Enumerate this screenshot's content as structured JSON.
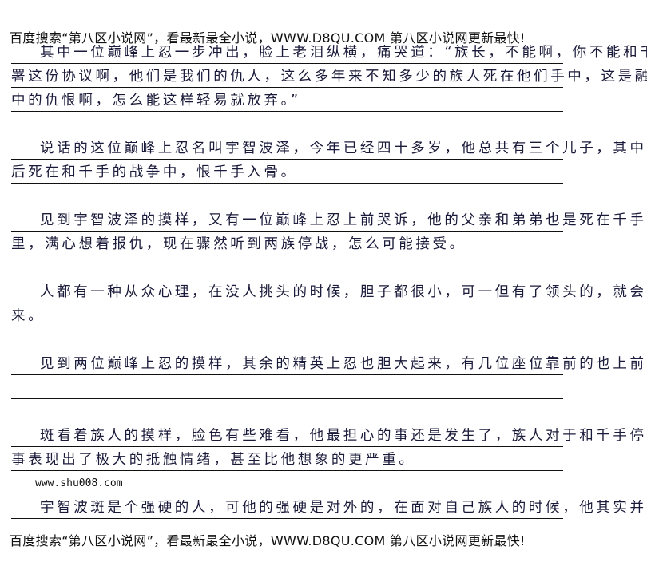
{
  "header_banner": "百度搜索“第八区小说网”，看最新最全小说，WWW.D8QU.COM  第八区小说网更新最快!",
  "paragraphs": [
    [
      "其中一位巅峰上忍一步冲出，脸上老泪纵横，痛哭道：“族长，不能啊，你不能和千手签",
      "署这份协议啊，他们是我们的仇人，这么多年来不知多少的族人死在他们手中，这是融进血液",
      "中的仇恨啊，怎么能这样轻易就放弃。”"
    ],
    [
      "说话的这位巅峰上忍名叫宇智波泽，今年已经四十多岁，他总共有三个儿子，其中两个先",
      "后死在和千手的战争中，恨千手入骨。"
    ],
    [
      "见到宇智波泽的摸样，又有一位巅峰上忍上前哭诉，他的父亲和弟弟也是死在千手族人手",
      "里，满心想着报仇，现在骤然听到两族停战，怎么可能接受。"
    ],
    [
      "人都有一种从众心理，在没人挑头的时候，胆子都很小，可一但有了领头的，就会胆大起",
      "来。"
    ],
    [
      "见到两位巅峰上忍的摸样，其余的精英上忍也胆大起来，有几位座位靠前的也上前哭诉。",
      ""
    ],
    [
      "斑看着族人的摸样，脸色有些难看，他最担心的事还是发生了，族人对于和千手停战这件",
      "事表现出了极大的抵触情绪，甚至比他想象的更严重。"
    ],
    [
      "宇智波斑是个强硬的人，可他的强硬是对外的，在面对自己族人的时候，他其实并不是一"
    ]
  ],
  "watermark_url": "www.shu008.com",
  "footer_banner": "百度搜索“第八区小说网”，看最新最全小说，WWW.D8QU.COM  第八区小说网更新最快!"
}
